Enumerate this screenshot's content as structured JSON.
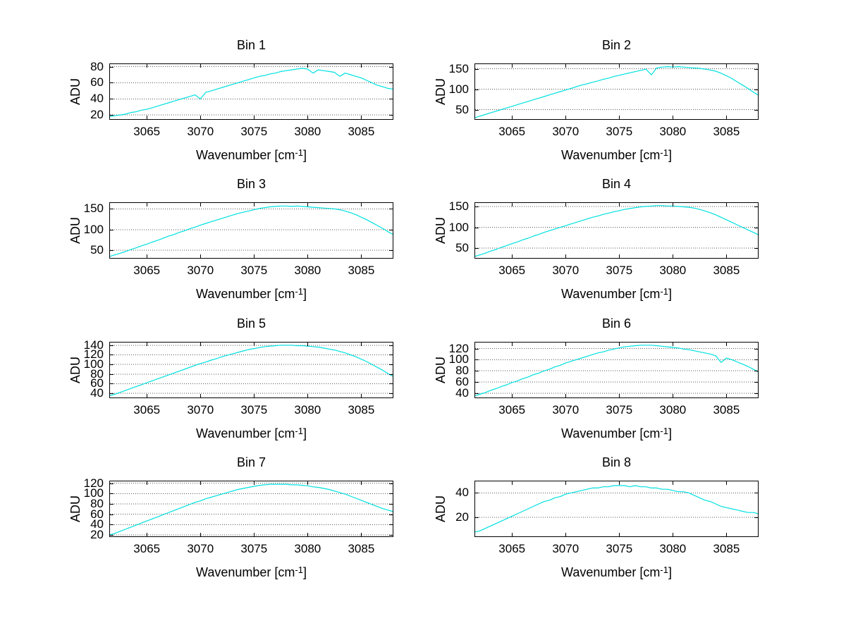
{
  "figure": {
    "background": "#ffffff",
    "line_color": "#00e0e0",
    "grid_color": "#555555",
    "axis_color": "#000000",
    "text_color": "#000000"
  },
  "chart_data": [
    {
      "type": "line",
      "title": "Bin 1",
      "ylabel": "ADU",
      "xlabel": {
        "pre": "Wavenumber [cm",
        "sup": "-1",
        "post": "]"
      },
      "xlim": [
        3061.5,
        3088
      ],
      "ylim": [
        14,
        84
      ],
      "xticks": [
        3065,
        3070,
        3075,
        3080,
        3085
      ],
      "yticks": [
        20,
        40,
        60,
        80
      ],
      "grid": "y-dotted",
      "x_start": 3061.5,
      "x_step": 0.5,
      "y": [
        18,
        19,
        20,
        21,
        23,
        24,
        26,
        27,
        29,
        31,
        33,
        35,
        37,
        39,
        41,
        43,
        45,
        40,
        48,
        50,
        52,
        54,
        56,
        58,
        60,
        62,
        64,
        66,
        68,
        69,
        71,
        72,
        74,
        75,
        76,
        77,
        78,
        77,
        72,
        76,
        75,
        74,
        73,
        68,
        72,
        70,
        68,
        66,
        63,
        60,
        57,
        55,
        53,
        52
      ]
    },
    {
      "type": "line",
      "title": "Bin 2",
      "ylabel": "ADU",
      "xlabel": {
        "pre": "Wavenumber [cm",
        "sup": "-1",
        "post": "]"
      },
      "xlim": [
        3061.5,
        3088
      ],
      "ylim": [
        25,
        163
      ],
      "xticks": [
        3065,
        3070,
        3075,
        3080,
        3085
      ],
      "yticks": [
        50,
        100,
        150
      ],
      "grid": "y-dotted",
      "x_start": 3061.5,
      "x_step": 0.5,
      "y": [
        30,
        34,
        38,
        42,
        46,
        50,
        54,
        58,
        62,
        66,
        70,
        74,
        78,
        82,
        86,
        90,
        94,
        98,
        102,
        106,
        110,
        113,
        117,
        120,
        124,
        127,
        131,
        134,
        137,
        140,
        143,
        146,
        149,
        135,
        152,
        154,
        155,
        154,
        155,
        154,
        153,
        152,
        151,
        149,
        147,
        144,
        139,
        133,
        126,
        118,
        110,
        102,
        93,
        85
      ]
    },
    {
      "type": "line",
      "title": "Bin 3",
      "ylabel": "ADU",
      "xlabel": {
        "pre": "Wavenumber [cm",
        "sup": "-1",
        "post": "]"
      },
      "xlim": [
        3061.5,
        3088
      ],
      "ylim": [
        30,
        166
      ],
      "xticks": [
        3065,
        3070,
        3075,
        3080,
        3085
      ],
      "yticks": [
        50,
        100,
        150
      ],
      "grid": "y-dotted",
      "x_start": 3061.5,
      "x_step": 0.5,
      "y": [
        35,
        39,
        43,
        47,
        52,
        56,
        61,
        65,
        70,
        74,
        79,
        84,
        88,
        93,
        97,
        102,
        106,
        111,
        115,
        119,
        123,
        127,
        131,
        135,
        139,
        142,
        145,
        148,
        151,
        153,
        155,
        156,
        157,
        157,
        156,
        157,
        156,
        155,
        154,
        153,
        152,
        151,
        150,
        148,
        145,
        141,
        136,
        130,
        124,
        117,
        110,
        103,
        95,
        88
      ]
    },
    {
      "type": "line",
      "title": "Bin 4",
      "ylabel": "ADU",
      "xlabel": {
        "pre": "Wavenumber [cm",
        "sup": "-1",
        "post": "]"
      },
      "xlim": [
        3061.5,
        3088
      ],
      "ylim": [
        25,
        160
      ],
      "xticks": [
        3065,
        3070,
        3075,
        3080,
        3085
      ],
      "yticks": [
        50,
        100,
        150
      ],
      "grid": "y-dotted",
      "x_start": 3061.5,
      "x_step": 0.5,
      "y": [
        30,
        34,
        38,
        43,
        47,
        52,
        56,
        61,
        65,
        70,
        74,
        79,
        83,
        88,
        92,
        96,
        100,
        104,
        108,
        112,
        116,
        120,
        124,
        127,
        131,
        134,
        137,
        140,
        143,
        145,
        147,
        149,
        150,
        151,
        152,
        152,
        151,
        151,
        150,
        149,
        148,
        146,
        143,
        139,
        135,
        130,
        124,
        118,
        112,
        106,
        100,
        94,
        88,
        82
      ]
    },
    {
      "type": "line",
      "title": "Bin 5",
      "ylabel": "ADU",
      "xlabel": {
        "pre": "Wavenumber [cm",
        "sup": "-1",
        "post": "]"
      },
      "xlim": [
        3061.5,
        3088
      ],
      "ylim": [
        30,
        147
      ],
      "xticks": [
        3065,
        3070,
        3075,
        3080,
        3085
      ],
      "yticks": [
        40,
        60,
        80,
        100,
        120,
        140
      ],
      "grid": "y-dotted",
      "x_start": 3061.5,
      "x_step": 0.5,
      "y": [
        35,
        38,
        42,
        46,
        50,
        54,
        58,
        62,
        66,
        70,
        74,
        78,
        82,
        86,
        90,
        94,
        98,
        102,
        105,
        109,
        112,
        116,
        119,
        122,
        125,
        128,
        131,
        133,
        135,
        137,
        138,
        139,
        140,
        140,
        140,
        139,
        139,
        138,
        137,
        136,
        134,
        132,
        130,
        127,
        124,
        120,
        116,
        111,
        106,
        100,
        94,
        88,
        81,
        75
      ]
    },
    {
      "type": "line",
      "title": "Bin 6",
      "ylabel": "ADU",
      "xlabel": {
        "pre": "Wavenumber [cm",
        "sup": "-1",
        "post": "]"
      },
      "xlim": [
        3061.5,
        3088
      ],
      "ylim": [
        31,
        132
      ],
      "xticks": [
        3065,
        3070,
        3075,
        3080,
        3085
      ],
      "yticks": [
        40,
        60,
        80,
        100,
        120
      ],
      "grid": "y-dotted",
      "x_start": 3061.5,
      "x_step": 0.5,
      "y": [
        35,
        38,
        41,
        45,
        48,
        52,
        55,
        59,
        62,
        66,
        69,
        73,
        76,
        80,
        83,
        87,
        90,
        94,
        97,
        100,
        103,
        106,
        109,
        112,
        114,
        117,
        119,
        121,
        123,
        124,
        125,
        126,
        126,
        126,
        125,
        124,
        123,
        122,
        121,
        119,
        118,
        116,
        114,
        112,
        110,
        107,
        95,
        103,
        100,
        96,
        92,
        88,
        83,
        78
      ]
    },
    {
      "type": "line",
      "title": "Bin 7",
      "ylabel": "ADU",
      "xlabel": {
        "pre": "Wavenumber [cm",
        "sup": "-1",
        "post": "]"
      },
      "xlim": [
        3061.5,
        3088
      ],
      "ylim": [
        16,
        125
      ],
      "xticks": [
        3065,
        3070,
        3075,
        3080,
        3085
      ],
      "yticks": [
        20,
        40,
        60,
        80,
        100,
        120
      ],
      "grid": "y-dotted",
      "x_start": 3061.5,
      "x_step": 0.5,
      "y": [
        20,
        23,
        27,
        31,
        35,
        39,
        43,
        47,
        51,
        55,
        59,
        63,
        67,
        71,
        75,
        79,
        83,
        86,
        90,
        93,
        96,
        99,
        102,
        105,
        108,
        110,
        112,
        114,
        116,
        117,
        118,
        118,
        118,
        118,
        117,
        117,
        116,
        115,
        113,
        112,
        110,
        108,
        105,
        102,
        99,
        95,
        91,
        87,
        83,
        79,
        75,
        71,
        68,
        65
      ]
    },
    {
      "type": "line",
      "title": "Bin 8",
      "ylabel": "ADU",
      "xlabel": {
        "pre": "Wavenumber [cm",
        "sup": "-1",
        "post": "]"
      },
      "xlim": [
        3061.5,
        3088
      ],
      "ylim": [
        4,
        50
      ],
      "xticks": [
        3065,
        3070,
        3075,
        3080,
        3085
      ],
      "yticks": [
        20,
        40
      ],
      "grid": "y-dotted",
      "x_start": 3061.5,
      "x_step": 0.5,
      "y": [
        8,
        9,
        11,
        13,
        15,
        17,
        19,
        21,
        23,
        25,
        27,
        29,
        31,
        33,
        34,
        36,
        37,
        39,
        40,
        41,
        42,
        43,
        44,
        44,
        45,
        45,
        46,
        46,
        46,
        45,
        46,
        45,
        45,
        44,
        44,
        43,
        43,
        42,
        41,
        41,
        40,
        38,
        36,
        34,
        33,
        31,
        29,
        28,
        27,
        26,
        25,
        24,
        24,
        23
      ]
    }
  ]
}
